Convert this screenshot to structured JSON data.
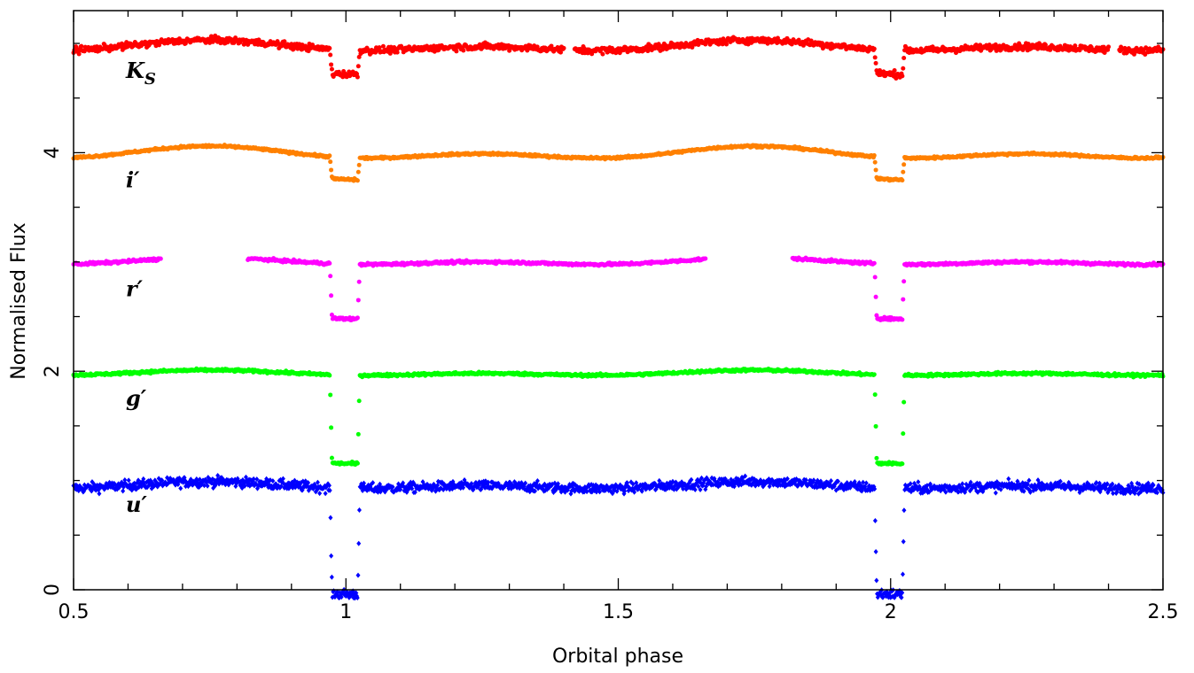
{
  "chart_data": {
    "type": "scatter",
    "xlabel": "Orbital phase",
    "ylabel": "Normalised Flux",
    "xlim": [
      0.5,
      2.5
    ],
    "ylim": [
      0,
      5.3
    ],
    "x_ticks": [
      "0.5",
      "1",
      "1.5",
      "2",
      "2.5"
    ],
    "x_tick_values": [
      0.5,
      1.0,
      1.5,
      2.0,
      2.5
    ],
    "y_ticks": [
      "0",
      "2",
      "4"
    ],
    "y_tick_values": [
      0,
      2,
      4
    ],
    "minor_x_step": 0.1,
    "minor_y_step": 0.5,
    "grid": false,
    "eclipse": {
      "width": 0.055,
      "ingress": 0.004
    },
    "series": [
      {
        "name": "u′",
        "label_main": "u",
        "label_sub": "",
        "label_prime": "′",
        "color": "#0000ff",
        "marker": "diamond",
        "baseline": 0.95,
        "amplitude": 0.04,
        "eclipse_depth": 0.97,
        "noise": 0.045,
        "label_y": 0.78,
        "gaps": []
      },
      {
        "name": "g′",
        "label_main": "g",
        "label_sub": "",
        "label_prime": "′",
        "color": "#00ff00",
        "marker": "dot",
        "baseline": 1.98,
        "amplitude": 0.03,
        "eclipse_depth": 0.81,
        "noise": 0.012,
        "label_y": 1.75,
        "gaps": []
      },
      {
        "name": "r′",
        "label_main": "r",
        "label_sub": "",
        "label_prime": "′",
        "color": "#ff00ff",
        "marker": "dot",
        "baseline": 3.0,
        "amplitude": 0.04,
        "eclipse_depth": 0.5,
        "noise": 0.012,
        "label_y": 2.75,
        "gaps": [
          [
            0.66,
            0.82
          ],
          [
            1.66,
            1.82
          ]
        ]
      },
      {
        "name": "i′",
        "label_main": "i",
        "label_sub": "",
        "label_prime": "′",
        "color": "#ff8000",
        "marker": "dot",
        "baseline": 3.99,
        "amplitude": 0.07,
        "eclipse_depth": 0.2,
        "noise": 0.01,
        "label_y": 3.75,
        "gaps": []
      },
      {
        "name": "KS",
        "label_main": "K",
        "label_sub": "S",
        "label_prime": "",
        "color": "#ff0000",
        "marker": "dot",
        "baseline": 4.97,
        "amplitude": 0.06,
        "eclipse_depth": 0.22,
        "noise": 0.03,
        "label_y": 4.75,
        "gaps": [
          [
            1.4,
            1.42
          ],
          [
            2.4,
            2.42
          ]
        ]
      }
    ]
  }
}
